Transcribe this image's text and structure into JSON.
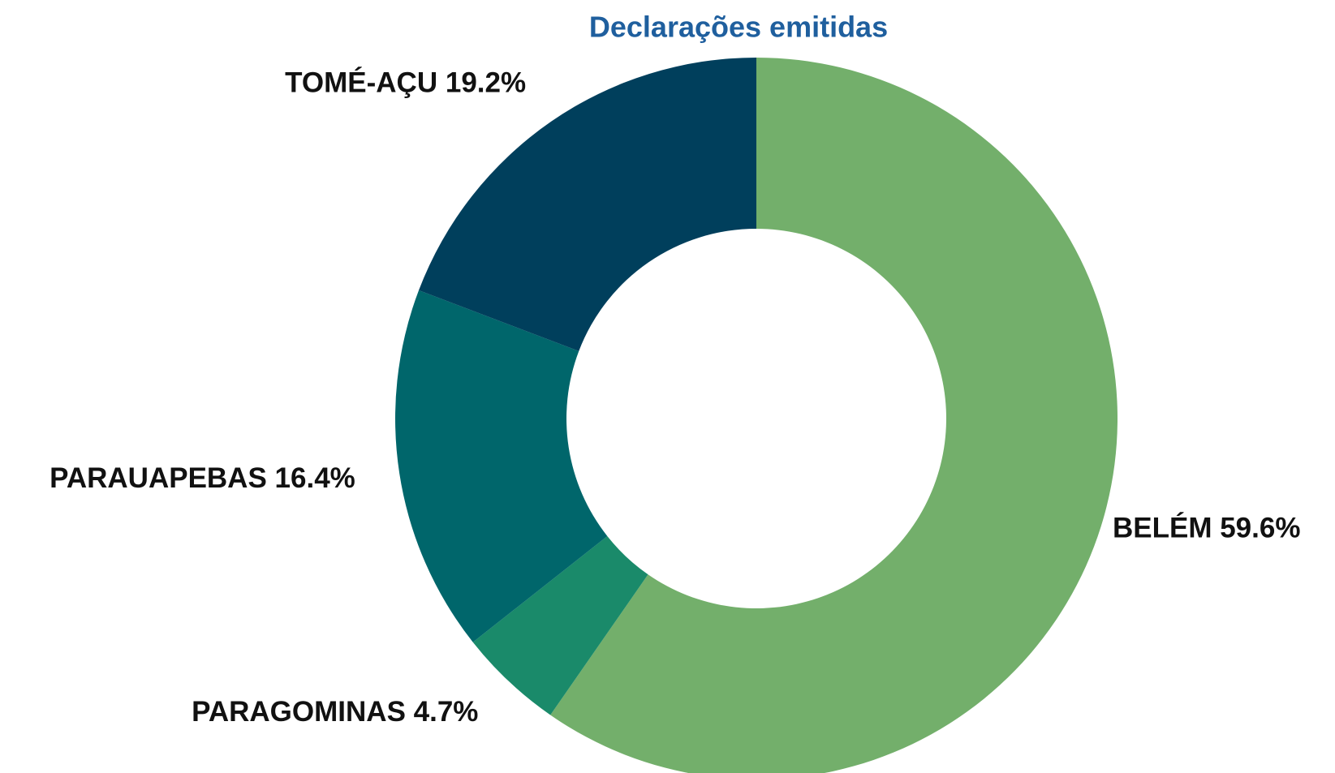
{
  "chart_data": {
    "type": "donut",
    "title": "Declarações emitidas",
    "categories": [
      "BELÉM",
      "PARAGOMINAS",
      "PARAUAPEBAS",
      "TOMÉ-AÇU"
    ],
    "values": [
      59.6,
      4.7,
      16.4,
      19.2
    ],
    "value_labels": [
      "59.6%",
      "4.7%",
      "16.4%",
      "19.2%"
    ],
    "colors": [
      "#73af6b",
      "#1a8a6a",
      "#00666b",
      "#003f5c"
    ]
  }
}
